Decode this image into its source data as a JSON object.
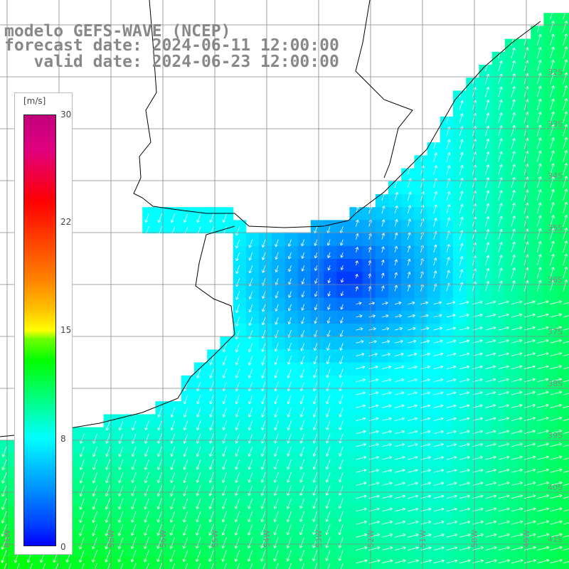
{
  "header": {
    "model_line": "modelo GEFS-WAVE (NCEP)",
    "forecast_line": "forecast date: 2024-06-11 12:00:00",
    "valid_line": "   valid date: 2024-06-23 12:00:00"
  },
  "colorbar": {
    "unit": "[m/s]",
    "ticks": [
      "30",
      "22",
      "15",
      "8",
      "0"
    ],
    "tick_values": [
      30,
      22,
      15,
      8,
      0
    ],
    "range": [
      0,
      30
    ],
    "colors": [
      "#0000ff",
      "#0090ff",
      "#00ffff",
      "#00ff00",
      "#ffff00",
      "#ff8000",
      "#ff0000",
      "#c0007a"
    ]
  },
  "map": {
    "land_color": "#ffffff",
    "coast_color": "#000000",
    "grid_color": "#888888",
    "lon_labels": [
      "61W",
      "59W",
      "58W",
      "56W",
      "55W",
      "54W",
      "53W",
      "52W",
      "51W",
      "50W",
      "49W"
    ],
    "lat_labels": [
      "32S",
      "33S",
      "34S",
      "35S",
      "36S",
      "37S",
      "38S",
      "39S",
      "40S",
      "41S"
    ]
  }
}
